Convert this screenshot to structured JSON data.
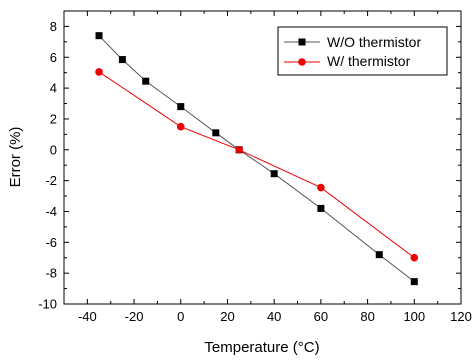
{
  "chart_data": {
    "type": "line",
    "xlabel": "Temperature (°C)",
    "ylabel": "Error (%)",
    "xlim": [
      -50,
      120
    ],
    "ylim": [
      -10,
      9
    ],
    "xticks": [
      -40,
      -20,
      0,
      20,
      40,
      60,
      80,
      100,
      120
    ],
    "yticks": [
      -10,
      -8,
      -6,
      -4,
      -2,
      0,
      2,
      4,
      6,
      8
    ],
    "grid": false,
    "legend_position": "top-right",
    "series": [
      {
        "name": "W/O thermistor",
        "color": "#000000",
        "line_color": "#555555",
        "marker": "square",
        "x": [
          -35,
          -25,
          -15,
          0,
          15,
          25,
          40,
          60,
          85,
          100
        ],
        "y": [
          7.4,
          5.85,
          4.45,
          2.8,
          1.1,
          0.0,
          -1.55,
          -3.8,
          -6.8,
          -8.55
        ]
      },
      {
        "name": "W/ thermistor",
        "color": "#ee0000",
        "line_color": "#ee0000",
        "marker": "circle",
        "x": [
          -35,
          0,
          25,
          60,
          100
        ],
        "y": [
          5.05,
          1.5,
          0.0,
          -2.45,
          -7.0
        ]
      }
    ]
  }
}
